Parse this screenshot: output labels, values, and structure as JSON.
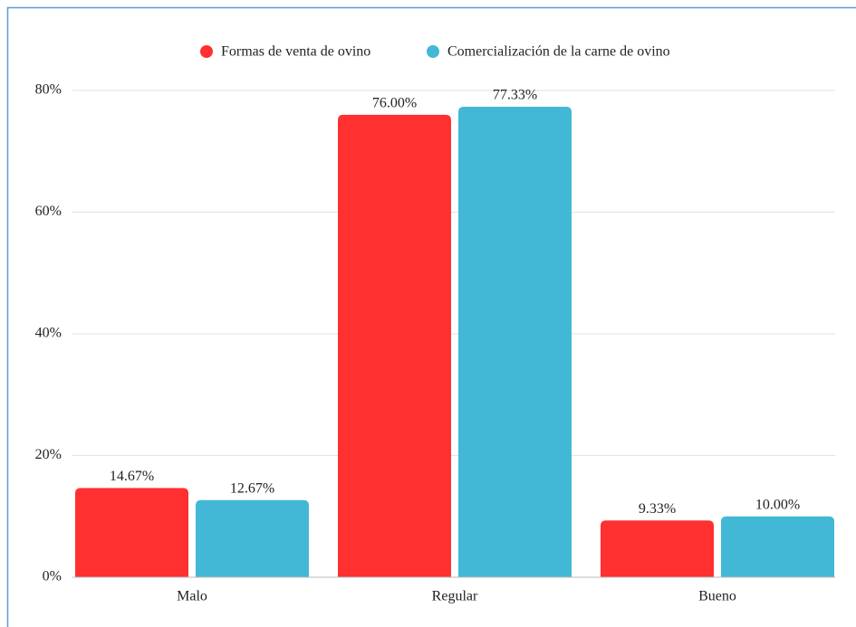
{
  "chart_data": {
    "type": "bar",
    "categories": [
      "Malo",
      "Regular",
      "Bueno"
    ],
    "series": [
      {
        "name": "Formas de venta de ovino",
        "color": "#ff3030",
        "values": [
          14.67,
          76.0,
          9.33
        ],
        "value_labels": [
          "14.67%",
          "76.00%",
          "9.33%"
        ]
      },
      {
        "name": "Comercialización de la carne de ovino",
        "color": "#42b8d6",
        "values": [
          12.67,
          77.33,
          10.0
        ],
        "value_labels": [
          "12.67%",
          "77.33%",
          "10.00%"
        ]
      }
    ],
    "ylim": [
      0,
      80
    ],
    "yticks": [
      {
        "value": 0,
        "label": "0%"
      },
      {
        "value": 20,
        "label": "20%"
      },
      {
        "value": 40,
        "label": "40%"
      },
      {
        "value": 60,
        "label": "60%"
      },
      {
        "value": 80,
        "label": "80%"
      }
    ],
    "grid": true,
    "legend": "top"
  }
}
